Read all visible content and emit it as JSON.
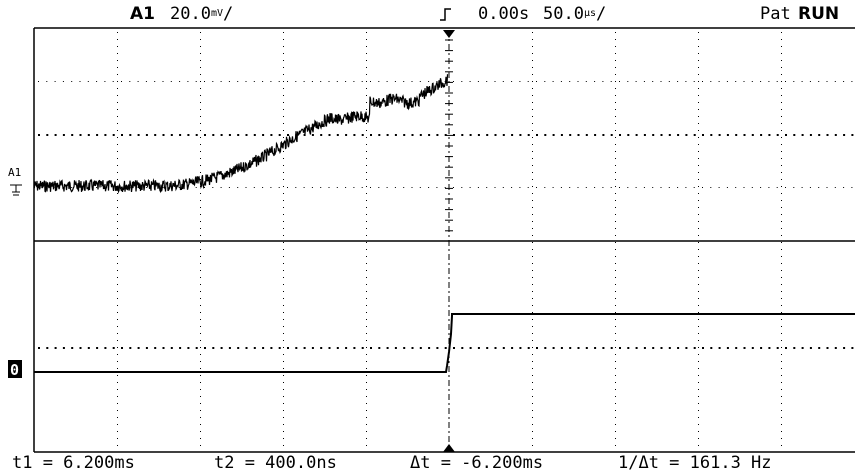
{
  "header": {
    "channel_label": "A1",
    "channel_scale": "20.0",
    "channel_unit": "mV",
    "trigger_time": "0.00s",
    "time_scale": "50.0",
    "time_unit": "µs",
    "mode_label": "Pat",
    "run_state": "RUN"
  },
  "markers": {
    "analog_channel": "A1",
    "digital_channel": "0"
  },
  "readouts": {
    "t1": "t1 = 6.200ms",
    "t2": "t2 = 400.0ns",
    "dt": "Δt = -6.200ms",
    "inv_dt": "1/Δt = 161.3 Hz"
  },
  "colors": {
    "background": "#ffffff",
    "trace": "#000000",
    "grid": "#000000"
  }
}
